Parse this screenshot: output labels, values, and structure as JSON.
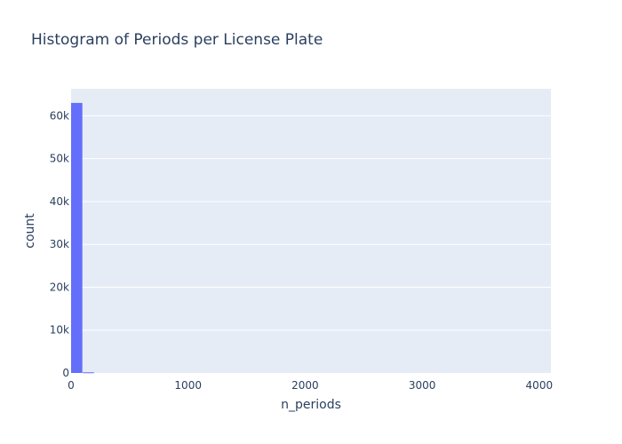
{
  "chart_data": {
    "type": "bar",
    "title": "Histogram of Periods per License Plate",
    "xlabel": "n_periods",
    "ylabel": "count",
    "xlim": [
      0,
      4100
    ],
    "ylim": [
      0,
      66300
    ],
    "grid": true,
    "bin_width": 100,
    "bins": [
      {
        "x0": 0,
        "x1": 100,
        "count": 63000
      },
      {
        "x0": 100,
        "x1": 200,
        "count": 150
      }
    ],
    "x_ticks": [
      {
        "value": 0,
        "label": "0"
      },
      {
        "value": 1000,
        "label": "1000"
      },
      {
        "value": 2000,
        "label": "2000"
      },
      {
        "value": 3000,
        "label": "3000"
      },
      {
        "value": 4000,
        "label": "4000"
      }
    ],
    "y_ticks": [
      {
        "value": 0,
        "label": "0"
      },
      {
        "value": 10000,
        "label": "10k"
      },
      {
        "value": 20000,
        "label": "20k"
      },
      {
        "value": 30000,
        "label": "30k"
      },
      {
        "value": 40000,
        "label": "40k"
      },
      {
        "value": 50000,
        "label": "50k"
      },
      {
        "value": 60000,
        "label": "60k"
      }
    ],
    "colors": {
      "bar": "#636efa",
      "plot_bg": "#e5ecf6",
      "grid": "#ffffff",
      "text": "#2a3f5f"
    }
  }
}
